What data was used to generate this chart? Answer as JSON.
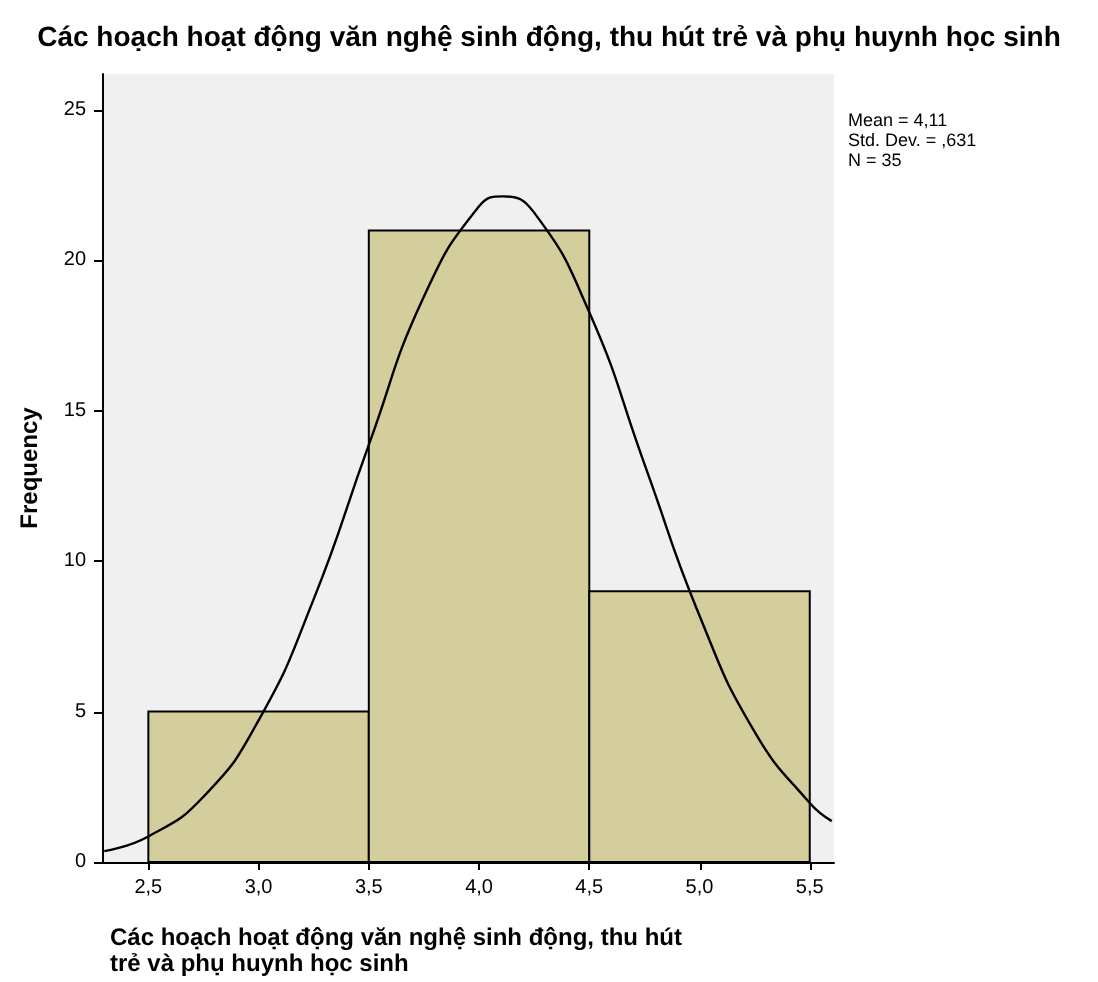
{
  "chart_data": {
    "type": "histogram",
    "title": "Các hoạch hoạt động văn nghệ sinh động, thu hút trẻ và phụ huynh học sinh",
    "xlabel": "Các hoạch hoạt động văn nghệ sinh động, thu hút trẻ và phụ huynh học sinh",
    "ylabel": "Frequency",
    "annotations": [
      "Mean = 4,11",
      "Std. Dev. = ,631",
      "N = 35"
    ],
    "series": [
      {
        "color": "#d3ce9b",
        "bins": [
          2.5,
          3.5,
          4.5,
          5.5
        ],
        "values": [
          5,
          21,
          9
        ]
      },
      {
        "type": "line",
        "color": "#000000",
        "x": [
          2.3,
          2.5,
          2.75,
          3.0,
          3.25,
          3.5,
          3.75,
          4.0,
          4.11,
          4.25,
          4.5,
          4.75,
          5.0,
          5.25,
          5.5,
          5.6
        ],
        "values": [
          0.36,
          0.85,
          2.17,
          4.71,
          8.74,
          13.87,
          18.8,
          21.8,
          22.13,
          21.59,
          18.28,
          13.24,
          8.19,
          4.33,
          1.96,
          1.36
        ]
      }
    ],
    "xlim": [
      2.29,
      5.61
    ],
    "ylim": [
      0,
      26.2
    ],
    "xticks": [
      {
        "value": 2.5,
        "label": "2,5"
      },
      {
        "value": 3.0,
        "label": "3,0"
      },
      {
        "value": 3.5,
        "label": "3,5"
      },
      {
        "value": 4.0,
        "label": "4,0"
      },
      {
        "value": 4.5,
        "label": "4,5"
      },
      {
        "value": 5.0,
        "label": "5,0"
      },
      {
        "value": 5.5,
        "label": "5,5"
      }
    ],
    "yticks": [
      0,
      5,
      10,
      15,
      20,
      25
    ],
    "grid": false
  }
}
